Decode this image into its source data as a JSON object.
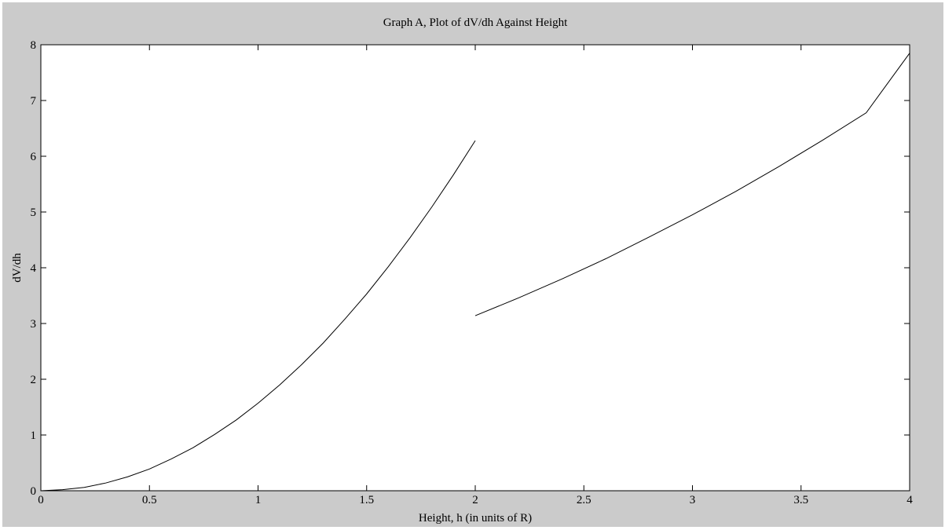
{
  "figure": {
    "background_color": "#cbcbcb",
    "plot_background": "#ffffff",
    "line_color": "#000000"
  },
  "chart_data": {
    "type": "line",
    "title": "Graph A, Plot of dV/dh Against Height",
    "xlabel": "Height, h (in units of R)",
    "ylabel": "dV/dh",
    "xlim": [
      0,
      4
    ],
    "ylim": [
      0,
      8
    ],
    "grid": false,
    "legend": "none",
    "x_ticks": [
      0,
      0.5,
      1,
      1.5,
      2,
      2.5,
      3,
      3.5,
      4
    ],
    "x_tick_labels": [
      "0",
      "0.5",
      "1",
      "1.5",
      "2",
      "2.5",
      "3",
      "3.5",
      "4"
    ],
    "y_ticks": [
      0,
      1,
      2,
      3,
      4,
      5,
      6,
      7,
      8
    ],
    "y_tick_labels": [
      "0",
      "1",
      "2",
      "3",
      "4",
      "5",
      "6",
      "7",
      "8"
    ],
    "series": [
      {
        "x": [
          0,
          0.1,
          0.2,
          0.3,
          0.4,
          0.5,
          0.6,
          0.7,
          0.8,
          0.9,
          1.0,
          1.1,
          1.2,
          1.3,
          1.4,
          1.5,
          1.6,
          1.7,
          1.8,
          1.9,
          2.0
        ],
        "y": [
          0,
          0.02,
          0.06,
          0.14,
          0.25,
          0.39,
          0.57,
          0.77,
          1.01,
          1.27,
          1.57,
          1.9,
          2.26,
          2.65,
          3.08,
          3.53,
          4.02,
          4.54,
          5.09,
          5.67,
          6.28
        ]
      },
      {
        "x": [
          2.0,
          2.2,
          2.4,
          2.6,
          2.8,
          3.0,
          3.2,
          3.4,
          3.6,
          3.8,
          4.0
        ],
        "y": [
          3.14,
          3.46,
          3.8,
          4.16,
          4.55,
          4.95,
          5.37,
          5.82,
          6.29,
          6.78,
          7.85
        ]
      }
    ]
  }
}
